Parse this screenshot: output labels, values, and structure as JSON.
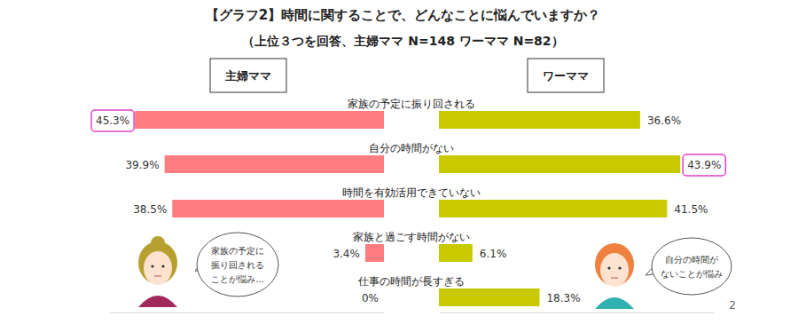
{
  "chart_data": {
    "type": "bar",
    "orientation": "horizontal",
    "title": "【グラフ2】時間に関することで、どんなことに悩んでいますか？",
    "subtitle": "（上位３つを回答、主婦ママ N=148 ワーママ N=82）",
    "categories": [
      "家族の予定に振り回される",
      "自分の時間がない",
      "時間を有効活用できていない",
      "家族と過ごす時間がない",
      "仕事の時間が長すぎる"
    ],
    "series": [
      {
        "name": "主婦ママ",
        "color": "#ff7c80",
        "values": [
          45.3,
          39.9,
          38.5,
          3.4,
          0
        ],
        "value_labels": [
          "45.3%",
          "39.9%",
          "38.5%",
          "3.4%",
          "0%"
        ]
      },
      {
        "name": "ワーママ",
        "color": "#c9c900",
        "values": [
          36.6,
          43.9,
          41.5,
          6.1,
          18.3
        ],
        "value_labels": [
          "36.6%",
          "43.9%",
          "41.5%",
          "6.1%",
          "18.3%"
        ]
      }
    ],
    "xlim": [
      0,
      50
    ],
    "data_labels": true,
    "tick_labels": false,
    "grid": false,
    "annotations": [
      {
        "lines": [
          "家族の予定に",
          "振り回される",
          "ことが悩み…"
        ]
      },
      {
        "lines": [
          "自分の時間が",
          "ないことが悩み"
        ]
      },
      {
        "text": "2"
      }
    ]
  }
}
